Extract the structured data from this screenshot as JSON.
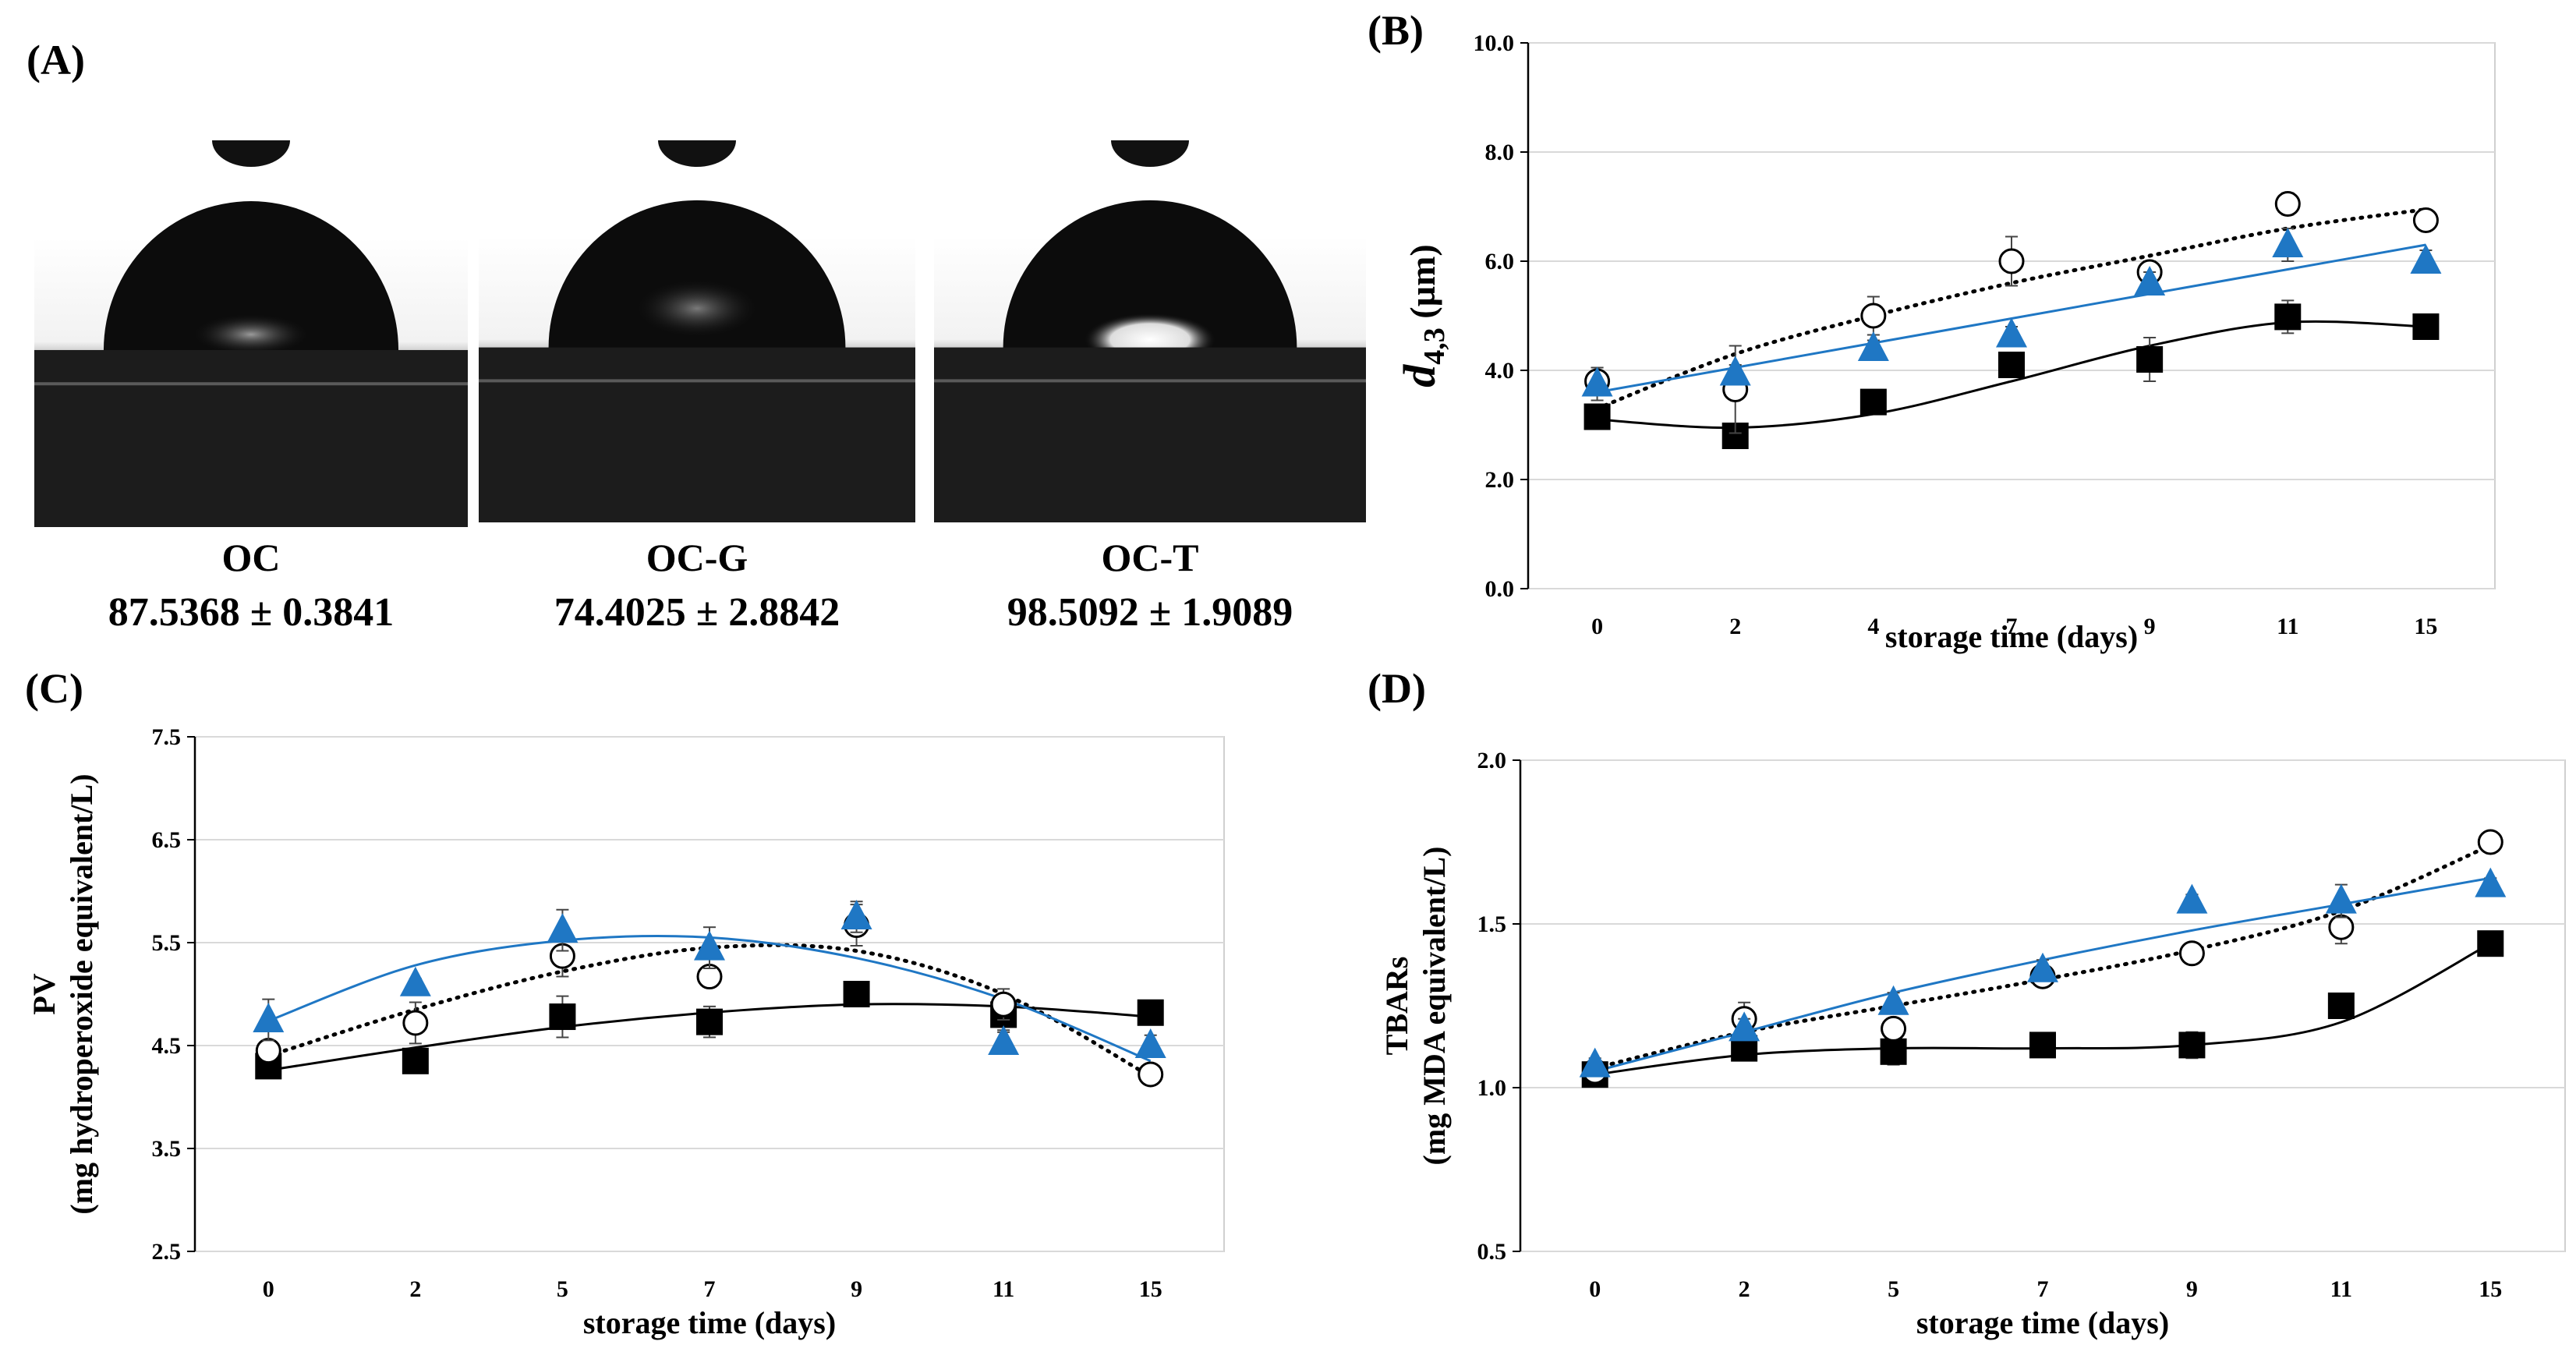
{
  "panel_a": {
    "letter": "(A)",
    "samples": [
      {
        "name": "OC",
        "angle": "87.5368 ± 0.3841",
        "tone": "dark-reflection"
      },
      {
        "name": "OC-G",
        "angle": "74.4025 ± 2.8842",
        "tone": "textured"
      },
      {
        "name": "OC-T",
        "angle": "98.5092 ± 1.9089",
        "tone": "bright-core"
      }
    ]
  },
  "chart_data": [
    {
      "panel": "(B)",
      "type": "scatter",
      "categories": [
        "0",
        "2",
        "4",
        "7",
        "9",
        "11",
        "15"
      ],
      "xlabel": "storage time (days)",
      "ylabel": "d",
      "ylabel_sub": "4,3",
      "ylabel_unit": " (µm)",
      "ylim": [
        0,
        10
      ],
      "yticks": [
        "0.0",
        "2.0",
        "4.0",
        "6.0",
        "8.0",
        "10.0"
      ],
      "ytick_values": [
        0,
        2,
        4,
        6,
        8,
        10
      ],
      "grid": true,
      "series": [
        {
          "marker": "square",
          "color": "#000000",
          "line": "solid",
          "values": [
            3.15,
            2.8,
            3.42,
            4.1,
            4.2,
            4.98,
            4.8
          ],
          "errors": [
            0.2,
            0.1,
            0.15,
            0.15,
            0.4,
            0.3,
            0.1
          ],
          "trend": [
            3.1,
            2.95,
            3.2,
            3.8,
            4.45,
            4.88,
            4.8
          ]
        },
        {
          "marker": "circle-open",
          "color": "#000000",
          "line": "dotted",
          "values": [
            3.8,
            3.65,
            5.0,
            6.0,
            5.8,
            7.05,
            6.75
          ],
          "errors": [
            0.25,
            0.8,
            0.35,
            0.45,
            0.2,
            0.2,
            0.1
          ],
          "trend": [
            3.3,
            4.3,
            5.0,
            5.6,
            6.1,
            6.6,
            6.95
          ]
        },
        {
          "marker": "triangle",
          "color": "#1f77c4",
          "line": "solid",
          "values": [
            3.75,
            3.95,
            4.4,
            4.65,
            5.6,
            6.3,
            6.0
          ],
          "errors": [
            0.3,
            0.15,
            0.15,
            0.15,
            0.2,
            0.3,
            0.2
          ],
          "trend": [
            3.6,
            4.05,
            4.5,
            4.95,
            5.4,
            5.85,
            6.3
          ]
        }
      ]
    },
    {
      "panel": "(C)",
      "type": "scatter",
      "categories": [
        "0",
        "2",
        "5",
        "7",
        "9",
        "11",
        "15"
      ],
      "xlabel": "storage time (days)",
      "ylabel": "PV",
      "ylabel2": "(mg hydroperoxide equivalent/L)",
      "ylim": [
        2.5,
        7.5
      ],
      "yticks": [
        "2.5",
        "3.5",
        "4.5",
        "5.5",
        "6.5",
        "7.5"
      ],
      "ytick_values": [
        2.5,
        3.5,
        4.5,
        5.5,
        6.5,
        7.5
      ],
      "grid": true,
      "series": [
        {
          "marker": "square",
          "color": "#000000",
          "line": "solid",
          "values": [
            4.3,
            4.35,
            4.78,
            4.73,
            5.0,
            4.8,
            4.82
          ],
          "errors": [
            0.1,
            0.1,
            0.2,
            0.15,
            0.1,
            0.15,
            0.05
          ],
          "trend": [
            4.26,
            4.48,
            4.68,
            4.82,
            4.9,
            4.88,
            4.78
          ]
        },
        {
          "marker": "circle-open",
          "color": "#000000",
          "line": "dotted",
          "values": [
            4.45,
            4.72,
            5.37,
            5.17,
            5.67,
            4.9,
            4.22
          ],
          "errors": [
            0.1,
            0.2,
            0.2,
            0.1,
            0.2,
            0.15,
            0.05
          ],
          "trend": [
            4.4,
            4.85,
            5.22,
            5.45,
            5.42,
            5.0,
            4.2
          ]
        },
        {
          "marker": "triangle",
          "color": "#1f77c4",
          "line": "solid",
          "values": [
            4.75,
            5.1,
            5.62,
            5.45,
            5.75,
            4.53,
            4.5
          ],
          "errors": [
            0.2,
            0.05,
            0.2,
            0.2,
            0.15,
            0.1,
            0.1
          ],
          "trend": [
            4.74,
            5.28,
            5.52,
            5.55,
            5.35,
            4.95,
            4.35
          ]
        }
      ]
    },
    {
      "panel": "(D)",
      "type": "scatter",
      "categories": [
        "0",
        "2",
        "5",
        "7",
        "9",
        "11",
        "15"
      ],
      "xlabel": "storage time (days)",
      "ylabel": "TBARs",
      "ylabel2": "(mg MDA equivalent/L)",
      "ylim": [
        0.5,
        2.0
      ],
      "yticks": [
        "0.5",
        "1.0",
        "1.5",
        "2.0"
      ],
      "ytick_values": [
        0.5,
        1.0,
        1.5,
        2.0
      ],
      "grid": true,
      "series": [
        {
          "marker": "square",
          "color": "#000000",
          "line": "solid",
          "values": [
            1.04,
            1.12,
            1.11,
            1.13,
            1.13,
            1.25,
            1.44
          ],
          "errors": [
            0.02,
            0.03,
            0.04,
            0.02,
            0.04,
            0.02,
            0.02
          ],
          "trend": [
            1.04,
            1.1,
            1.12,
            1.12,
            1.13,
            1.2,
            1.44
          ]
        },
        {
          "marker": "circle-open",
          "color": "#000000",
          "line": "dotted",
          "values": [
            1.05,
            1.21,
            1.18,
            1.34,
            1.41,
            1.49,
            1.75
          ],
          "errors": [
            0.02,
            0.05,
            0.03,
            0.03,
            0.02,
            0.05,
            0.02
          ],
          "trend": [
            1.06,
            1.17,
            1.25,
            1.33,
            1.42,
            1.54,
            1.74
          ]
        },
        {
          "marker": "triangle",
          "color": "#1f77c4",
          "line": "solid",
          "values": [
            1.07,
            1.18,
            1.26,
            1.36,
            1.57,
            1.57,
            1.62
          ],
          "errors": [
            0.02,
            0.03,
            0.03,
            0.03,
            0.02,
            0.05,
            0.02
          ],
          "trend": [
            1.05,
            1.17,
            1.29,
            1.39,
            1.48,
            1.56,
            1.64
          ]
        }
      ]
    }
  ]
}
